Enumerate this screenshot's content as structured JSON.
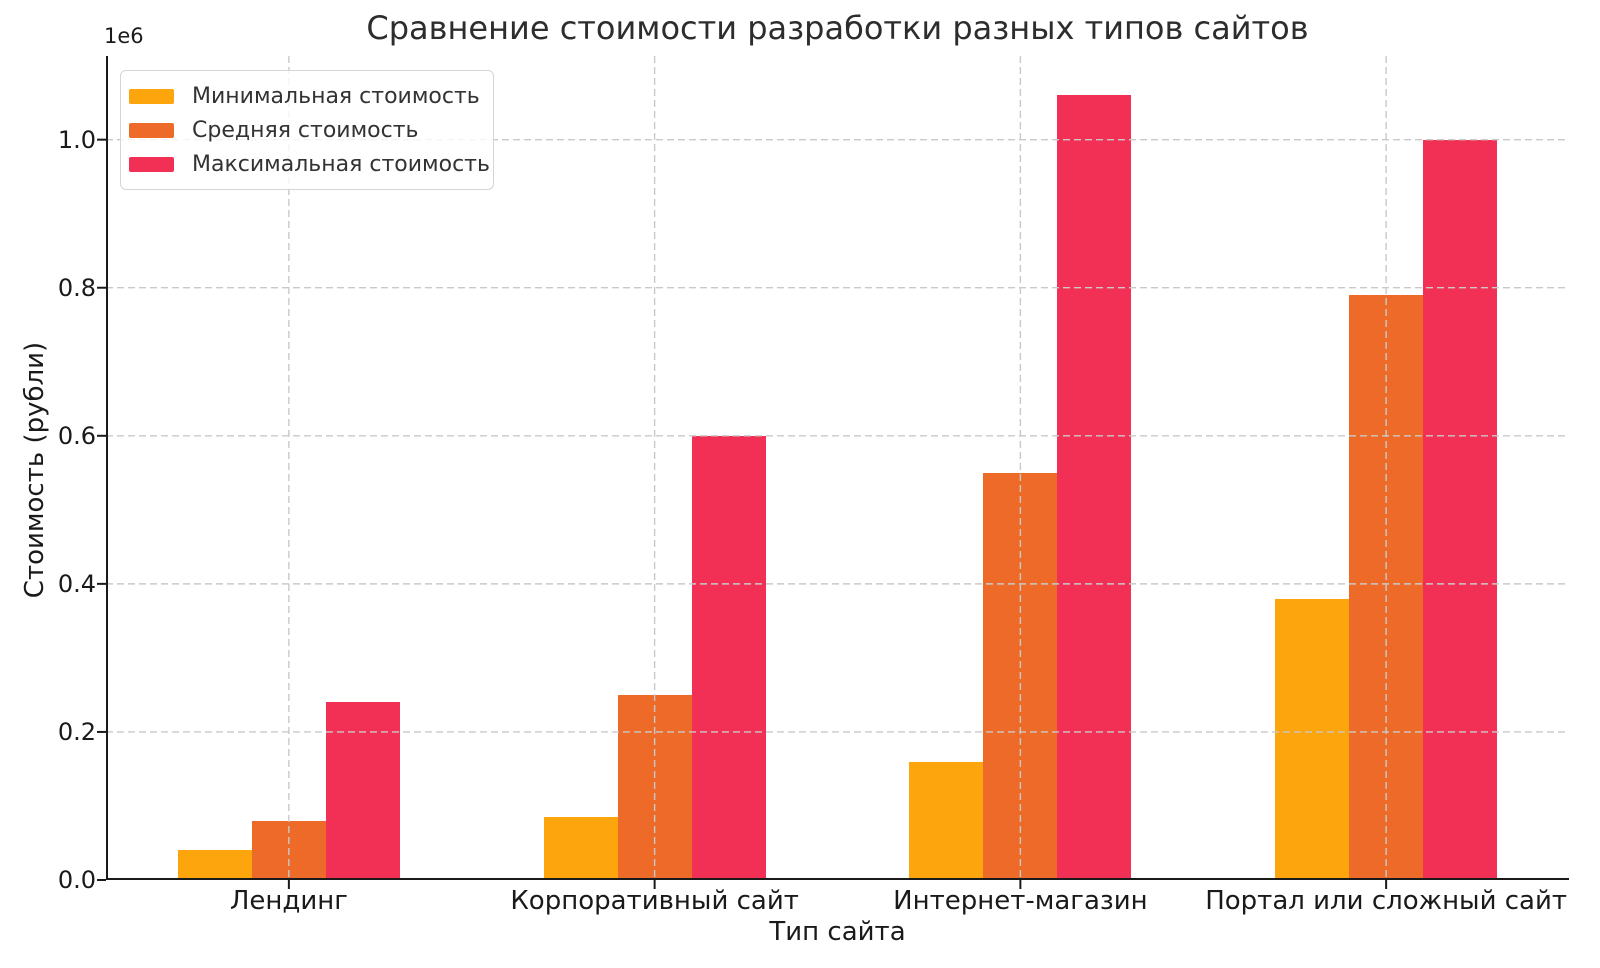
{
  "chart_data": {
    "type": "bar",
    "title": "Сравнение стоимости разработки разных типов сайтов",
    "xlabel": "Тип сайта",
    "ylabel": "Стоимость (рубли)",
    "y_offset_label": "1e6",
    "categories": [
      "Лендинг",
      "Корпоративный сайт",
      "Интернет-магазин",
      "Портал или сложный сайт"
    ],
    "series": [
      {
        "name": "Минимальная стоимость",
        "color": "#FCA50D",
        "values": [
          40000,
          85000,
          160000,
          380000
        ]
      },
      {
        "name": "Средняя стоимость",
        "color": "#ED6A28",
        "values": [
          80000,
          250000,
          550000,
          790000
        ]
      },
      {
        "name": "Максимальная стоимость",
        "color": "#F23055",
        "values": [
          240000,
          600000,
          1060000,
          1000000
        ]
      }
    ],
    "ylim": [
      0,
      1113000
    ],
    "yticks": [
      0,
      200000,
      400000,
      600000,
      800000,
      1000000
    ],
    "ytick_labels": [
      "0.0",
      "0.2",
      "0.4",
      "0.6",
      "0.8",
      "1.0"
    ],
    "grid": true,
    "grid_color": "#c9c9c9",
    "spine_color": "#1a1a1a",
    "legend_position": "upper left",
    "background": "#ffffff"
  }
}
